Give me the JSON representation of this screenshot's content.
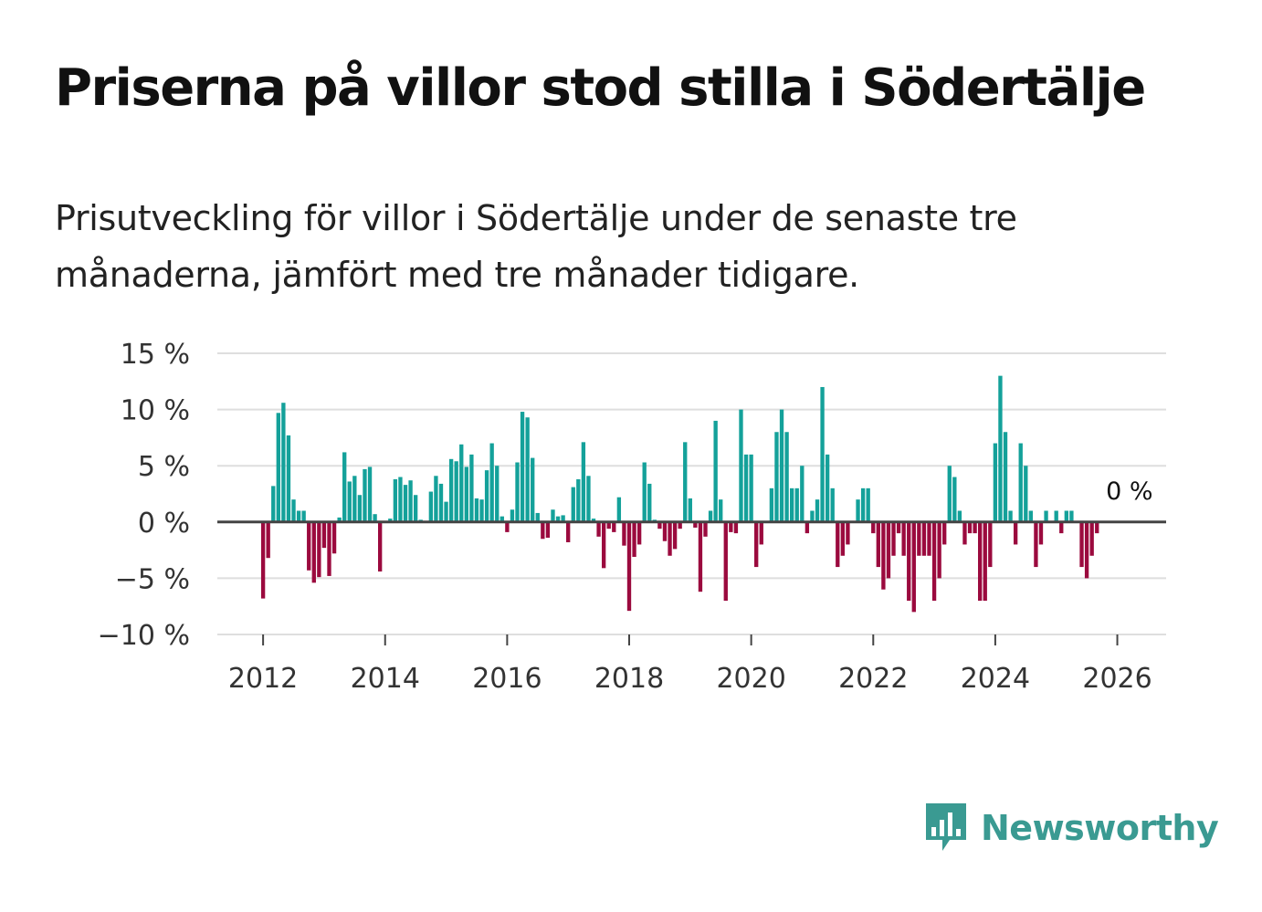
{
  "title": "Priserna på villor stod stilla i Södertälje",
  "subtitle": "Prisutveckling för villor i Södertälje under de senaste tre månaderna, jämfört med tre månader tidigare.",
  "brand": {
    "name": "Newsworthy",
    "color": "#3a9a92",
    "icon": "bar-chart-speech-bubble-icon"
  },
  "colors": {
    "positive": "#14a19a",
    "negative": "#9b0a3e",
    "grid": "#dedede",
    "zero": "#444444"
  },
  "chart_data": {
    "type": "bar",
    "title": "Priserna på villor stod stilla i Södertälje",
    "xlabel": "",
    "ylabel": "",
    "ylim": [
      -10,
      15
    ],
    "xlim": [
      2011.25,
      2026.8
    ],
    "yticks": [
      15,
      10,
      5,
      0,
      -5,
      -10
    ],
    "ytick_labels": [
      "15 %",
      "10 %",
      "5 %",
      "0 %",
      "−5 %",
      "−10 %"
    ],
    "xticks": [
      2012,
      2014,
      2016,
      2018,
      2020,
      2022,
      2024,
      2026
    ],
    "xtick_labels": [
      "2012",
      "2014",
      "2016",
      "2018",
      "2020",
      "2022",
      "2024",
      "2026"
    ],
    "start": 2012.0,
    "step": 0.08333,
    "end_label": "0 %",
    "values": [
      -6.8,
      -3.2,
      3.2,
      9.7,
      10.6,
      7.7,
      2.0,
      1.0,
      1.0,
      -4.3,
      -5.4,
      -4.9,
      -2.3,
      -4.8,
      -2.8,
      0.4,
      6.2,
      3.6,
      4.1,
      2.4,
      4.7,
      4.9,
      0.7,
      -4.4,
      0.0,
      0.3,
      3.8,
      4.0,
      3.3,
      3.7,
      2.4,
      0.2,
      0.0,
      2.7,
      4.1,
      3.4,
      1.8,
      5.6,
      5.4,
      6.9,
      4.9,
      6.0,
      2.1,
      2.0,
      4.6,
      7.0,
      5.0,
      0.5,
      -0.9,
      1.1,
      5.3,
      9.8,
      9.3,
      5.7,
      0.8,
      -1.5,
      -1.4,
      1.1,
      0.5,
      0.6,
      -1.8,
      3.1,
      3.8,
      7.1,
      4.1,
      0.3,
      -1.3,
      -4.1,
      -0.6,
      -0.9,
      2.2,
      -2.1,
      -7.9,
      -3.1,
      -2.0,
      5.3,
      3.4,
      0.2,
      -0.6,
      -1.7,
      -3.0,
      -2.4,
      -0.6,
      7.1,
      2.1,
      -0.5,
      -6.2,
      -1.3,
      1.0,
      9.0,
      2.0,
      -7.0,
      -0.9,
      -1.0,
      10.0,
      6.0,
      6.0,
      -4.0,
      -2.0,
      0.0,
      3.0,
      8.0,
      10.0,
      8.0,
      3.0,
      3.0,
      5.0,
      -1.0,
      1.0,
      2.0,
      12.0,
      6.0,
      3.0,
      -4.0,
      -3.0,
      -2.0,
      0.0,
      2.0,
      3.0,
      3.0,
      -1.0,
      -4.0,
      -6.0,
      -5.0,
      -3.0,
      -1.0,
      -3.0,
      -7.0,
      -8.0,
      -3.0,
      -3.0,
      -3.0,
      -7.0,
      -5.0,
      -2.0,
      5.0,
      4.0,
      1.0,
      -2.0,
      -1.0,
      -1.0,
      -7.0,
      -7.0,
      -4.0,
      7.0,
      13.0,
      8.0,
      1.0,
      -2.0,
      7.0,
      5.0,
      1.0,
      -4.0,
      -2.0,
      1.0,
      0.0,
      1.0,
      -1.0,
      1.0,
      1.0,
      0.0,
      -4.0,
      -5.0,
      -3.0,
      -1.0,
      0.0
    ]
  }
}
